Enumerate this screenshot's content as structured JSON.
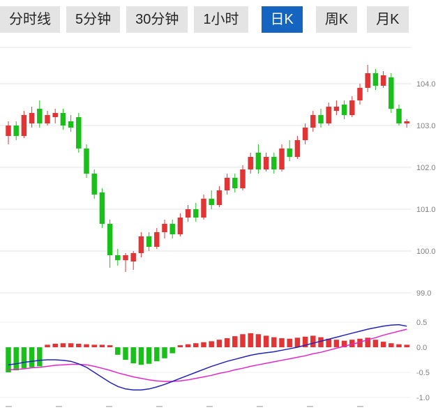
{
  "tabbar": {
    "tabs": [
      {
        "label": "分时线",
        "active": false
      },
      {
        "label": "5分钟",
        "active": false
      },
      {
        "label": "30分钟",
        "active": false
      },
      {
        "label": "1小时",
        "active": false
      },
      {
        "label": "日K",
        "active": true
      },
      {
        "label": "周K",
        "active": false
      },
      {
        "label": "月K",
        "active": false
      }
    ]
  },
  "colors": {
    "up": "#e13535",
    "down": "#1ac01a",
    "active_tab_bg": "#1565c0",
    "active_tab_text": "#ffffff",
    "tab_bg": "#e4e4e4",
    "tab_text": "#252525",
    "grid": "#e6e6e6",
    "axis_text": "#808080",
    "dif_line": "#2222bb",
    "dea_line": "#e326c8"
  },
  "chart_data": {
    "type": "candlestick+macd",
    "selected_timeframe": "日K",
    "price_axis": {
      "labels": [
        "104.0",
        "103.0",
        "102.0",
        "101.0",
        "100.0",
        "99.0"
      ],
      "range": [
        98.8,
        105.2
      ]
    },
    "candles": [
      [
        102.75,
        103.1,
        102.55,
        103.0
      ],
      [
        103.0,
        103.1,
        102.65,
        102.75
      ],
      [
        102.75,
        103.35,
        102.7,
        103.25
      ],
      [
        103.05,
        103.45,
        102.95,
        103.3
      ],
      [
        103.4,
        103.6,
        102.95,
        103.05
      ],
      [
        103.05,
        103.35,
        103.0,
        103.25
      ],
      [
        103.2,
        103.4,
        103.05,
        103.3
      ],
      [
        103.3,
        103.4,
        102.9,
        103.0
      ],
      [
        103.1,
        103.25,
        102.85,
        102.95
      ],
      [
        103.2,
        103.3,
        102.35,
        102.45
      ],
      [
        102.45,
        102.55,
        101.75,
        101.85
      ],
      [
        101.85,
        101.95,
        101.25,
        101.35
      ],
      [
        101.4,
        101.5,
        100.55,
        100.65
      ],
      [
        100.65,
        100.75,
        99.6,
        99.9
      ],
      [
        99.9,
        100.05,
        99.65,
        99.78
      ],
      [
        99.78,
        99.95,
        99.5,
        99.9
      ],
      [
        99.75,
        100.0,
        99.55,
        99.95
      ],
      [
        99.95,
        100.45,
        99.85,
        100.35
      ],
      [
        100.35,
        100.45,
        100.0,
        100.1
      ],
      [
        100.1,
        100.55,
        100.05,
        100.45
      ],
      [
        100.45,
        100.75,
        100.3,
        100.65
      ],
      [
        100.65,
        100.75,
        100.3,
        100.4
      ],
      [
        100.4,
        100.9,
        100.35,
        100.8
      ],
      [
        100.8,
        101.1,
        100.7,
        101.0
      ],
      [
        101.0,
        101.15,
        100.7,
        100.8
      ],
      [
        100.8,
        101.35,
        100.75,
        101.25
      ],
      [
        101.25,
        101.45,
        101.0,
        101.1
      ],
      [
        101.1,
        101.55,
        101.05,
        101.45
      ],
      [
        101.45,
        101.85,
        101.35,
        101.75
      ],
      [
        101.75,
        101.85,
        101.4,
        101.5
      ],
      [
        101.5,
        102.05,
        101.45,
        101.95
      ],
      [
        101.95,
        102.35,
        101.85,
        102.25
      ],
      [
        102.35,
        102.55,
        101.85,
        101.95
      ],
      [
        101.95,
        102.35,
        101.9,
        102.25
      ],
      [
        102.25,
        102.35,
        101.85,
        101.95
      ],
      [
        101.95,
        102.55,
        101.9,
        102.45
      ],
      [
        102.45,
        102.65,
        102.15,
        102.25
      ],
      [
        102.25,
        102.75,
        102.2,
        102.65
      ],
      [
        102.65,
        103.05,
        102.55,
        102.95
      ],
      [
        102.95,
        103.35,
        102.85,
        103.25
      ],
      [
        103.25,
        103.4,
        102.95,
        103.05
      ],
      [
        103.05,
        103.55,
        103.0,
        103.45
      ],
      [
        103.35,
        103.6,
        103.25,
        103.45
      ],
      [
        103.5,
        103.6,
        103.15,
        103.25
      ],
      [
        103.25,
        103.7,
        103.2,
        103.6
      ],
      [
        103.6,
        104.0,
        103.5,
        103.9
      ],
      [
        103.9,
        104.45,
        103.8,
        104.25
      ],
      [
        104.25,
        104.35,
        103.85,
        103.95
      ],
      [
        103.95,
        104.3,
        103.9,
        104.2
      ],
      [
        104.15,
        104.25,
        103.3,
        103.4
      ],
      [
        103.4,
        103.5,
        103.0,
        103.05
      ],
      [
        103.05,
        103.15,
        102.95,
        103.1
      ]
    ],
    "macd": {
      "axis_labels": [
        "0.5",
        "0.0",
        "-0.5",
        "-1.0"
      ],
      "range": [
        -1.0,
        0.5
      ],
      "histogram": [
        -0.5,
        -0.46,
        -0.42,
        -0.4,
        -0.38,
        0.05,
        0.07,
        0.08,
        0.08,
        0.07,
        0.06,
        0.05,
        0.05,
        0.04,
        -0.15,
        -0.25,
        -0.32,
        -0.35,
        -0.33,
        -0.28,
        -0.22,
        -0.12,
        0.04,
        0.06,
        0.08,
        0.1,
        0.12,
        0.15,
        0.18,
        0.22,
        0.26,
        0.28,
        0.26,
        0.23,
        0.2,
        0.18,
        0.17,
        0.19,
        0.21,
        0.23,
        0.2,
        0.17,
        0.15,
        0.13,
        0.15,
        0.17,
        0.19,
        0.15,
        0.11,
        0.08,
        0.06,
        0.05
      ],
      "dif": [
        -0.35,
        -0.33,
        -0.3,
        -0.28,
        -0.26,
        -0.25,
        -0.25,
        -0.26,
        -0.28,
        -0.33,
        -0.4,
        -0.5,
        -0.6,
        -0.7,
        -0.78,
        -0.83,
        -0.85,
        -0.85,
        -0.83,
        -0.79,
        -0.74,
        -0.68,
        -0.62,
        -0.56,
        -0.5,
        -0.44,
        -0.38,
        -0.33,
        -0.28,
        -0.24,
        -0.2,
        -0.16,
        -0.13,
        -0.11,
        -0.09,
        -0.06,
        -0.03,
        0.0,
        0.04,
        0.08,
        0.12,
        0.16,
        0.2,
        0.24,
        0.28,
        0.32,
        0.36,
        0.39,
        0.42,
        0.44,
        0.45,
        0.42
      ],
      "dea": [
        -0.45,
        -0.44,
        -0.43,
        -0.41,
        -0.4,
        -0.38,
        -0.36,
        -0.35,
        -0.34,
        -0.34,
        -0.35,
        -0.38,
        -0.42,
        -0.46,
        -0.51,
        -0.55,
        -0.59,
        -0.62,
        -0.65,
        -0.67,
        -0.68,
        -0.68,
        -0.67,
        -0.65,
        -0.62,
        -0.59,
        -0.56,
        -0.52,
        -0.49,
        -0.45,
        -0.42,
        -0.38,
        -0.35,
        -0.32,
        -0.29,
        -0.26,
        -0.23,
        -0.2,
        -0.17,
        -0.13,
        -0.1,
        -0.06,
        -0.02,
        0.02,
        0.06,
        0.1,
        0.15,
        0.19,
        0.24,
        0.28,
        0.32,
        0.36
      ]
    }
  }
}
